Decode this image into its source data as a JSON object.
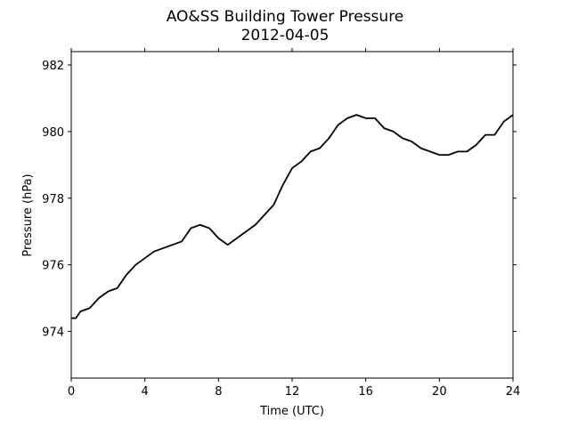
{
  "chart_data": {
    "type": "line",
    "title": "AO&SS Building Tower Pressure",
    "subtitle": "2012-04-05",
    "x_label": "Time (UTC)",
    "y_label": "Pressure (hPa)",
    "xlim": [
      0,
      24
    ],
    "xticks": [
      0,
      4,
      8,
      12,
      16,
      20,
      24
    ],
    "ylim": [
      972.6,
      982.4
    ],
    "yticks": [
      974,
      976,
      978,
      980,
      982
    ],
    "grid": false,
    "series": [
      {
        "name": "Pressure",
        "color": "#000000",
        "x": [
          0,
          0.25,
          0.5,
          1,
          1.5,
          2,
          2.5,
          3,
          3.5,
          4,
          4.5,
          5,
          5.5,
          6,
          6.5,
          7,
          7.5,
          8,
          8.5,
          9,
          9.5,
          10,
          10.5,
          11,
          11.5,
          12,
          12.5,
          13,
          13.5,
          14,
          14.5,
          15,
          15.5,
          16,
          16.5,
          17,
          17.5,
          18,
          18.5,
          19,
          19.5,
          20,
          20.5,
          21,
          21.5,
          22,
          22.5,
          23,
          23.5,
          24
        ],
        "values": [
          974.4,
          974.4,
          974.6,
          974.7,
          975.0,
          975.2,
          975.3,
          975.7,
          976.0,
          976.2,
          976.4,
          976.5,
          976.6,
          976.7,
          977.1,
          977.2,
          977.1,
          976.8,
          976.6,
          976.8,
          977.0,
          977.2,
          977.5,
          977.8,
          978.4,
          978.9,
          979.1,
          979.4,
          979.5,
          979.8,
          980.2,
          980.4,
          980.5,
          980.4,
          980.4,
          980.1,
          980.0,
          979.8,
          979.7,
          979.5,
          979.4,
          979.3,
          979.3,
          979.4,
          979.4,
          979.6,
          979.9,
          979.9,
          980.3,
          980.5
        ]
      }
    ]
  }
}
